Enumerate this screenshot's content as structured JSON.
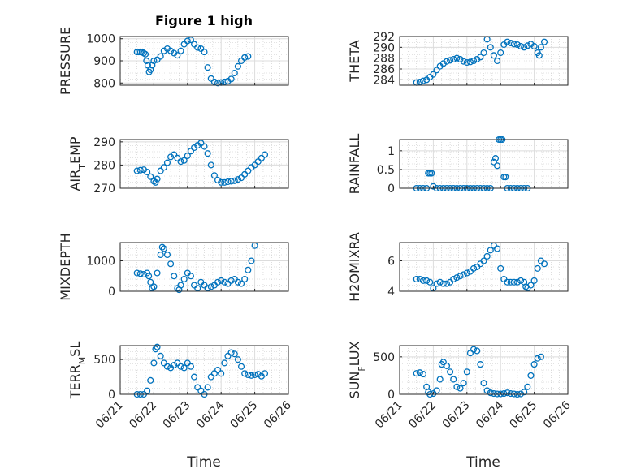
{
  "figure": {
    "title": "Figure 1 high",
    "x_axis_label": "Time"
  },
  "colors": {
    "marker": "#0072BD",
    "axis": "#262626",
    "grid": "#dcdcdc",
    "minor_grid": "#c8c8c8"
  },
  "chart_data": [
    {
      "type": "scatter",
      "ylabel": "PRESSURE",
      "ylim": [
        790,
        1010
      ],
      "yticks": [
        800,
        900,
        1000
      ],
      "xlim": [
        0,
        5
      ],
      "xticks": [
        "06/21",
        "06/22",
        "06/23",
        "06/24",
        "06/25",
        "06/26"
      ],
      "x_tick_labels_shown": false,
      "grid": true,
      "points": [
        [
          0.5,
          940
        ],
        [
          0.55,
          940
        ],
        [
          0.6,
          940
        ],
        [
          0.65,
          940
        ],
        [
          0.7,
          935
        ],
        [
          0.75,
          930
        ],
        [
          0.78,
          900
        ],
        [
          0.82,
          880
        ],
        [
          0.86,
          850
        ],
        [
          0.9,
          860
        ],
        [
          0.95,
          880
        ],
        [
          1.0,
          900
        ],
        [
          1.1,
          905
        ],
        [
          1.2,
          920
        ],
        [
          1.3,
          945
        ],
        [
          1.4,
          955
        ],
        [
          1.5,
          945
        ],
        [
          1.6,
          935
        ],
        [
          1.7,
          925
        ],
        [
          1.8,
          945
        ],
        [
          1.9,
          975
        ],
        [
          2.0,
          990
        ],
        [
          2.1,
          995
        ],
        [
          2.2,
          975
        ],
        [
          2.3,
          960
        ],
        [
          2.4,
          955
        ],
        [
          2.5,
          940
        ],
        [
          2.6,
          870
        ],
        [
          2.7,
          820
        ],
        [
          2.8,
          805
        ],
        [
          2.9,
          800
        ],
        [
          3.0,
          802
        ],
        [
          3.1,
          805
        ],
        [
          3.2,
          808
        ],
        [
          3.3,
          818
        ],
        [
          3.4,
          845
        ],
        [
          3.5,
          875
        ],
        [
          3.6,
          900
        ],
        [
          3.7,
          915
        ],
        [
          3.8,
          920
        ]
      ]
    },
    {
      "type": "scatter",
      "ylabel": "THETA",
      "ylim": [
        283,
        292
      ],
      "yticks": [
        284,
        286,
        288,
        290,
        292
      ],
      "xlim": [
        0,
        5
      ],
      "xticks": [
        "06/21",
        "06/22",
        "06/23",
        "06/24",
        "06/25",
        "06/26"
      ],
      "x_tick_labels_shown": false,
      "grid": true,
      "points": [
        [
          0.5,
          283.5
        ],
        [
          0.6,
          283.6
        ],
        [
          0.7,
          283.8
        ],
        [
          0.8,
          284.0
        ],
        [
          0.9,
          284.5
        ],
        [
          1.0,
          285.0
        ],
        [
          1.1,
          285.8
        ],
        [
          1.2,
          286.5
        ],
        [
          1.3,
          287.0
        ],
        [
          1.4,
          287.4
        ],
        [
          1.5,
          287.6
        ],
        [
          1.6,
          287.8
        ],
        [
          1.7,
          288.0
        ],
        [
          1.8,
          287.8
        ],
        [
          1.9,
          287.4
        ],
        [
          2.0,
          287.2
        ],
        [
          2.1,
          287.3
        ],
        [
          2.2,
          287.5
        ],
        [
          2.3,
          287.8
        ],
        [
          2.4,
          288.2
        ],
        [
          2.5,
          289.0
        ],
        [
          2.6,
          291.5
        ],
        [
          2.7,
          290.0
        ],
        [
          2.8,
          288.5
        ],
        [
          2.9,
          287.5
        ],
        [
          3.0,
          289.0
        ],
        [
          3.1,
          290.5
        ],
        [
          3.2,
          291.0
        ],
        [
          3.3,
          290.8
        ],
        [
          3.4,
          290.6
        ],
        [
          3.5,
          290.5
        ],
        [
          3.6,
          290.2
        ],
        [
          3.7,
          290.0
        ],
        [
          3.8,
          290.3
        ],
        [
          3.9,
          290.6
        ],
        [
          4.0,
          290.2
        ],
        [
          4.1,
          289.0
        ],
        [
          4.15,
          288.5
        ],
        [
          4.2,
          290.0
        ],
        [
          4.3,
          291.0
        ]
      ]
    },
    {
      "type": "scatter",
      "ylabel": "AIR_TEMP",
      "ylim": [
        270,
        291
      ],
      "yticks": [
        270,
        280,
        290
      ],
      "xlim": [
        0,
        5
      ],
      "xticks": [
        "06/21",
        "06/22",
        "06/23",
        "06/24",
        "06/25",
        "06/26"
      ],
      "x_tick_labels_shown": false,
      "grid": true,
      "points": [
        [
          0.5,
          277.5
        ],
        [
          0.6,
          277.8
        ],
        [
          0.7,
          278.0
        ],
        [
          0.8,
          277.0
        ],
        [
          0.9,
          275.0
        ],
        [
          1.0,
          273.0
        ],
        [
          1.05,
          272.5
        ],
        [
          1.1,
          274.0
        ],
        [
          1.2,
          277.5
        ],
        [
          1.3,
          279.0
        ],
        [
          1.4,
          281.0
        ],
        [
          1.5,
          283.5
        ],
        [
          1.6,
          284.5
        ],
        [
          1.7,
          283.0
        ],
        [
          1.8,
          281.5
        ],
        [
          1.9,
          282.0
        ],
        [
          2.0,
          284.0
        ],
        [
          2.1,
          286.0
        ],
        [
          2.2,
          287.5
        ],
        [
          2.3,
          288.5
        ],
        [
          2.4,
          289.5
        ],
        [
          2.5,
          288.0
        ],
        [
          2.6,
          285.0
        ],
        [
          2.7,
          280.0
        ],
        [
          2.8,
          275.5
        ],
        [
          2.9,
          273.5
        ],
        [
          3.0,
          272.5
        ],
        [
          3.1,
          272.5
        ],
        [
          3.2,
          272.8
        ],
        [
          3.3,
          273.0
        ],
        [
          3.4,
          273.2
        ],
        [
          3.5,
          273.8
        ],
        [
          3.6,
          274.5
        ],
        [
          3.7,
          276.0
        ],
        [
          3.8,
          277.5
        ],
        [
          3.9,
          279.0
        ],
        [
          4.0,
          280.0
        ],
        [
          4.1,
          281.5
        ],
        [
          4.2,
          283.0
        ],
        [
          4.3,
          284.5
        ]
      ]
    },
    {
      "type": "scatter",
      "ylabel": "RAINFALL",
      "ylim": [
        0,
        1.3
      ],
      "yticks": [
        0,
        0.5,
        1
      ],
      "xlim": [
        0,
        5
      ],
      "xticks": [
        "06/21",
        "06/22",
        "06/23",
        "06/24",
        "06/25",
        "06/26"
      ],
      "x_tick_labels_shown": false,
      "grid": true,
      "points": [
        [
          0.5,
          0
        ],
        [
          0.6,
          0
        ],
        [
          0.7,
          0
        ],
        [
          0.8,
          0
        ],
        [
          0.85,
          0.4
        ],
        [
          0.9,
          0.4
        ],
        [
          0.95,
          0.4
        ],
        [
          1.0,
          0.05
        ],
        [
          1.1,
          0
        ],
        [
          1.2,
          0
        ],
        [
          1.3,
          0
        ],
        [
          1.4,
          0
        ],
        [
          1.5,
          0
        ],
        [
          1.6,
          0
        ],
        [
          1.7,
          0
        ],
        [
          1.8,
          0
        ],
        [
          1.9,
          0
        ],
        [
          2.0,
          0
        ],
        [
          2.1,
          0
        ],
        [
          2.2,
          0
        ],
        [
          2.3,
          0
        ],
        [
          2.4,
          0
        ],
        [
          2.5,
          0
        ],
        [
          2.6,
          0
        ],
        [
          2.7,
          0
        ],
        [
          2.8,
          0.7
        ],
        [
          2.85,
          0.8
        ],
        [
          2.9,
          0.6
        ],
        [
          2.95,
          1.3
        ],
        [
          3.0,
          1.3
        ],
        [
          3.05,
          1.3
        ],
        [
          3.1,
          0.3
        ],
        [
          3.15,
          0.3
        ],
        [
          3.2,
          0
        ],
        [
          3.3,
          0
        ],
        [
          3.4,
          0
        ],
        [
          3.5,
          0
        ],
        [
          3.6,
          0
        ],
        [
          3.7,
          0
        ],
        [
          3.8,
          0
        ]
      ]
    },
    {
      "type": "scatter",
      "ylabel": "MIXDEPTH",
      "ylim": [
        0,
        1600
      ],
      "yticks": [
        0,
        1000
      ],
      "xlim": [
        0,
        5
      ],
      "xticks": [
        "06/21",
        "06/22",
        "06/23",
        "06/24",
        "06/25",
        "06/26"
      ],
      "x_tick_labels_shown": false,
      "grid": true,
      "points": [
        [
          0.5,
          600
        ],
        [
          0.6,
          580
        ],
        [
          0.7,
          560
        ],
        [
          0.8,
          600
        ],
        [
          0.85,
          500
        ],
        [
          0.9,
          300
        ],
        [
          0.95,
          100
        ],
        [
          1.0,
          150
        ],
        [
          1.1,
          600
        ],
        [
          1.2,
          1200
        ],
        [
          1.25,
          1450
        ],
        [
          1.3,
          1400
        ],
        [
          1.4,
          1200
        ],
        [
          1.5,
          900
        ],
        [
          1.6,
          500
        ],
        [
          1.7,
          100
        ],
        [
          1.75,
          50
        ],
        [
          1.8,
          200
        ],
        [
          1.9,
          400
        ],
        [
          2.0,
          600
        ],
        [
          2.1,
          500
        ],
        [
          2.2,
          200
        ],
        [
          2.3,
          100
        ],
        [
          2.4,
          300
        ],
        [
          2.5,
          200
        ],
        [
          2.6,
          100
        ],
        [
          2.7,
          150
        ],
        [
          2.8,
          200
        ],
        [
          2.9,
          300
        ],
        [
          3.0,
          350
        ],
        [
          3.1,
          300
        ],
        [
          3.2,
          250
        ],
        [
          3.3,
          350
        ],
        [
          3.4,
          400
        ],
        [
          3.5,
          300
        ],
        [
          3.6,
          250
        ],
        [
          3.7,
          400
        ],
        [
          3.8,
          700
        ],
        [
          3.9,
          1000
        ],
        [
          4.0,
          1500
        ]
      ]
    },
    {
      "type": "scatter",
      "ylabel": "H2OMIXRA",
      "ylim": [
        4,
        7.2
      ],
      "yticks": [
        4,
        6
      ],
      "xlim": [
        0,
        5
      ],
      "xticks": [
        "06/21",
        "06/22",
        "06/23",
        "06/24",
        "06/25",
        "06/26"
      ],
      "x_tick_labels_shown": false,
      "grid": true,
      "points": [
        [
          0.5,
          4.8
        ],
        [
          0.6,
          4.8
        ],
        [
          0.7,
          4.7
        ],
        [
          0.8,
          4.7
        ],
        [
          0.9,
          4.6
        ],
        [
          1.0,
          4.2
        ],
        [
          1.1,
          4.5
        ],
        [
          1.2,
          4.6
        ],
        [
          1.3,
          4.5
        ],
        [
          1.4,
          4.5
        ],
        [
          1.5,
          4.6
        ],
        [
          1.6,
          4.8
        ],
        [
          1.7,
          4.9
        ],
        [
          1.8,
          5.0
        ],
        [
          1.9,
          5.1
        ],
        [
          2.0,
          5.2
        ],
        [
          2.1,
          5.3
        ],
        [
          2.2,
          5.5
        ],
        [
          2.3,
          5.6
        ],
        [
          2.4,
          5.8
        ],
        [
          2.5,
          6.0
        ],
        [
          2.6,
          6.3
        ],
        [
          2.7,
          6.7
        ],
        [
          2.8,
          7.0
        ],
        [
          2.9,
          6.8
        ],
        [
          3.0,
          5.5
        ],
        [
          3.1,
          4.8
        ],
        [
          3.2,
          4.6
        ],
        [
          3.3,
          4.6
        ],
        [
          3.4,
          4.6
        ],
        [
          3.5,
          4.6
        ],
        [
          3.6,
          4.7
        ],
        [
          3.7,
          4.6
        ],
        [
          3.75,
          4.3
        ],
        [
          3.8,
          4.2
        ],
        [
          3.9,
          4.4
        ],
        [
          4.0,
          4.7
        ],
        [
          4.1,
          5.5
        ],
        [
          4.2,
          6.0
        ],
        [
          4.3,
          5.8
        ]
      ]
    },
    {
      "type": "scatter",
      "ylabel": "TERR_MSL",
      "ylim": [
        0,
        700
      ],
      "yticks": [
        0,
        500
      ],
      "xlim": [
        0,
        5
      ],
      "xticks": [
        "06/21",
        "06/22",
        "06/23",
        "06/24",
        "06/25",
        "06/26"
      ],
      "x_tick_labels_shown": true,
      "grid": true,
      "points": [
        [
          0.5,
          0
        ],
        [
          0.6,
          0
        ],
        [
          0.7,
          0
        ],
        [
          0.8,
          50
        ],
        [
          0.9,
          200
        ],
        [
          1.0,
          450
        ],
        [
          1.05,
          650
        ],
        [
          1.1,
          680
        ],
        [
          1.2,
          550
        ],
        [
          1.3,
          450
        ],
        [
          1.4,
          400
        ],
        [
          1.5,
          380
        ],
        [
          1.6,
          420
        ],
        [
          1.7,
          450
        ],
        [
          1.8,
          400
        ],
        [
          1.9,
          380
        ],
        [
          2.0,
          450
        ],
        [
          2.1,
          400
        ],
        [
          2.2,
          250
        ],
        [
          2.3,
          100
        ],
        [
          2.4,
          50
        ],
        [
          2.5,
          0
        ],
        [
          2.6,
          100
        ],
        [
          2.7,
          250
        ],
        [
          2.8,
          300
        ],
        [
          2.9,
          350
        ],
        [
          3.0,
          300
        ],
        [
          3.1,
          450
        ],
        [
          3.2,
          550
        ],
        [
          3.3,
          600
        ],
        [
          3.4,
          580
        ],
        [
          3.5,
          500
        ],
        [
          3.6,
          400
        ],
        [
          3.7,
          300
        ],
        [
          3.8,
          280
        ],
        [
          3.9,
          270
        ],
        [
          4.0,
          280
        ],
        [
          4.1,
          290
        ],
        [
          4.2,
          260
        ],
        [
          4.3,
          300
        ]
      ]
    },
    {
      "type": "scatter",
      "ylabel": "SUN_FLUX",
      "ylim": [
        0,
        650
      ],
      "yticks": [
        0,
        500
      ],
      "xlim": [
        0,
        5
      ],
      "xticks": [
        "06/21",
        "06/22",
        "06/23",
        "06/24",
        "06/25",
        "06/26"
      ],
      "x_tick_labels_shown": true,
      "grid": true,
      "points": [
        [
          0.5,
          280
        ],
        [
          0.6,
          290
        ],
        [
          0.7,
          270
        ],
        [
          0.8,
          100
        ],
        [
          0.85,
          30
        ],
        [
          0.9,
          0
        ],
        [
          1.0,
          10
        ],
        [
          1.1,
          50
        ],
        [
          1.2,
          200
        ],
        [
          1.25,
          400
        ],
        [
          1.3,
          430
        ],
        [
          1.4,
          380
        ],
        [
          1.5,
          300
        ],
        [
          1.6,
          200
        ],
        [
          1.7,
          100
        ],
        [
          1.8,
          80
        ],
        [
          1.9,
          150
        ],
        [
          2.0,
          300
        ],
        [
          2.1,
          550
        ],
        [
          2.2,
          600
        ],
        [
          2.3,
          580
        ],
        [
          2.4,
          400
        ],
        [
          2.5,
          150
        ],
        [
          2.6,
          50
        ],
        [
          2.7,
          20
        ],
        [
          2.8,
          10
        ],
        [
          2.9,
          5
        ],
        [
          3.0,
          5
        ],
        [
          3.1,
          10
        ],
        [
          3.2,
          20
        ],
        [
          3.3,
          10
        ],
        [
          3.4,
          5
        ],
        [
          3.5,
          0
        ],
        [
          3.6,
          5
        ],
        [
          3.7,
          30
        ],
        [
          3.8,
          100
        ],
        [
          3.9,
          250
        ],
        [
          4.0,
          400
        ],
        [
          4.1,
          480
        ],
        [
          4.2,
          500
        ]
      ]
    }
  ]
}
